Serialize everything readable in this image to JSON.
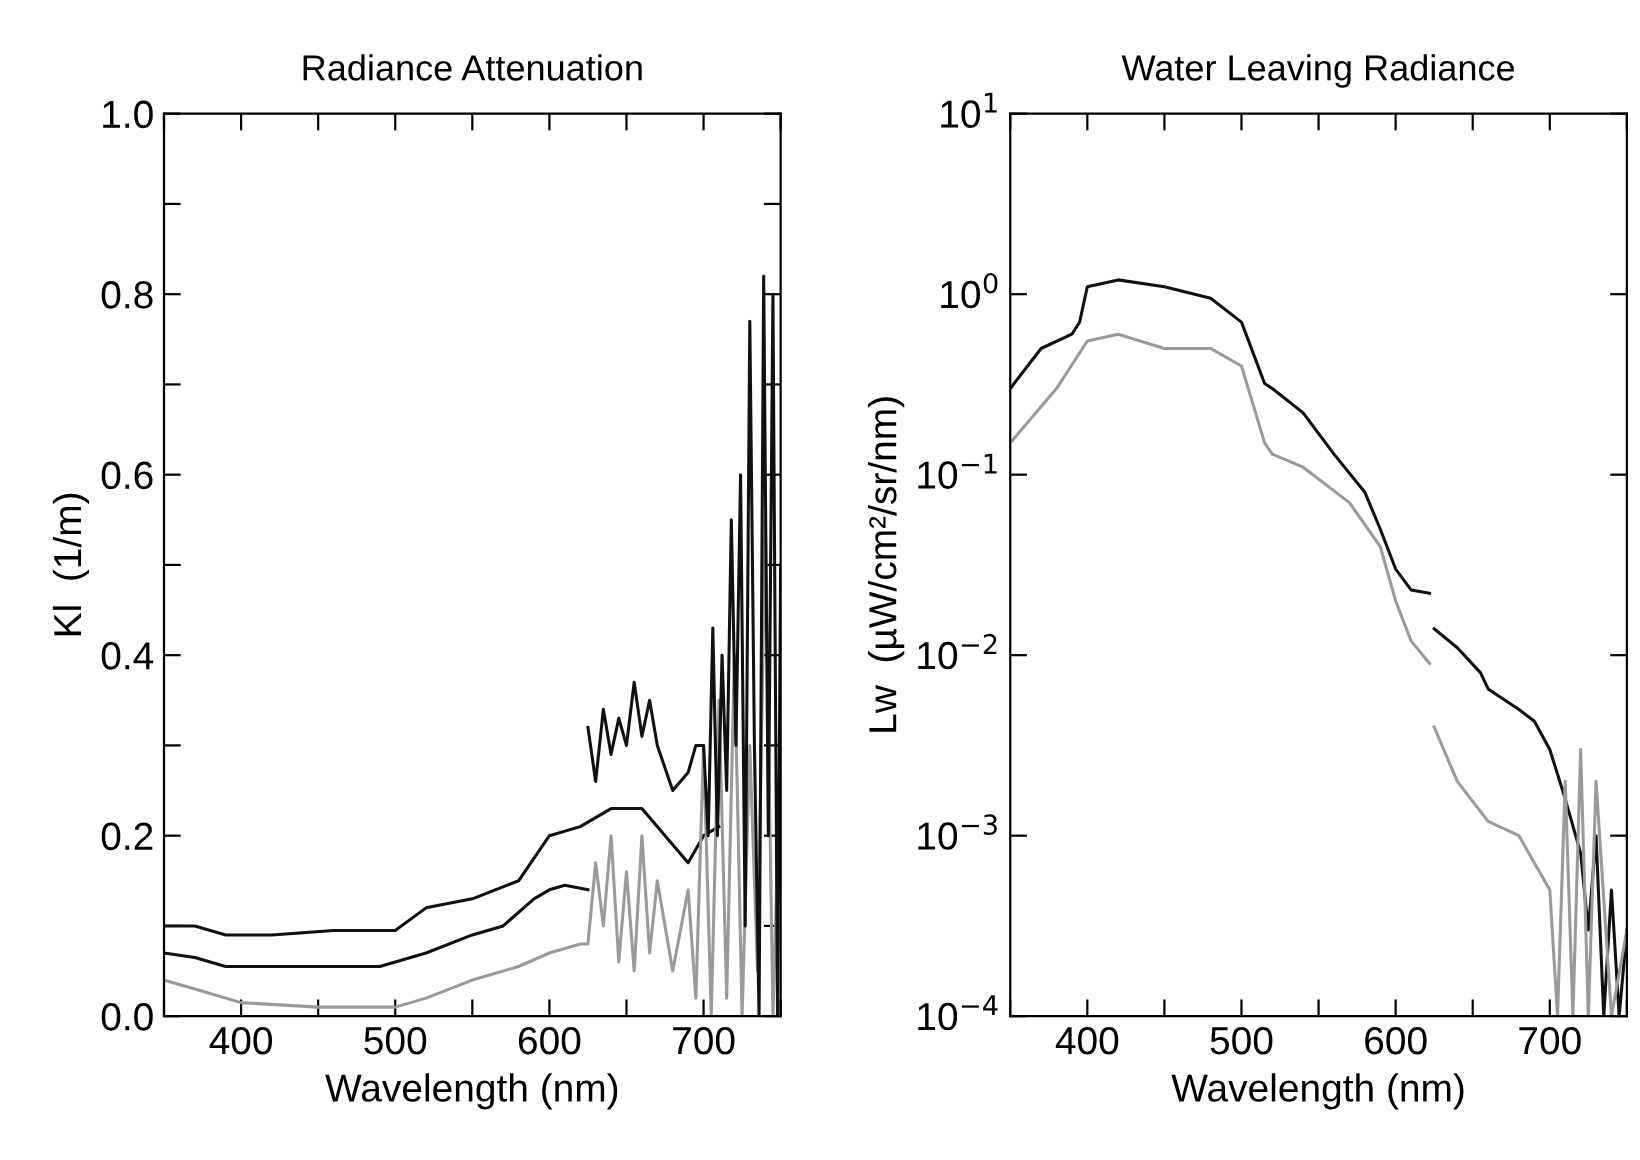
{
  "chart_data": [
    {
      "type": "line",
      "title": "Radiance Attenuation",
      "xlabel": "Wavelength (nm)",
      "ylabel": "Kl  (1/m)",
      "xlim": [
        350,
        750
      ],
      "xticks": [
        {
          "value": 350,
          "label": null
        },
        400,
        {
          "value": 450,
          "label": null
        },
        500,
        {
          "value": 550,
          "label": null
        },
        600,
        {
          "value": 650,
          "label": null
        },
        700,
        {
          "value": 750,
          "label": null
        }
      ],
      "ylim": [
        0,
        1
      ],
      "yticks": [
        {
          "value": 0,
          "label": "0.0"
        },
        {
          "value": 0.1,
          "label": null
        },
        0.2,
        {
          "value": 0.3,
          "label": null
        },
        0.4,
        {
          "value": 0.5,
          "label": null
        },
        0.6,
        {
          "value": 0.7,
          "label": null
        },
        0.8,
        {
          "value": 0.9,
          "label": null
        },
        {
          "value": 1,
          "label": "1.0"
        }
      ],
      "grid": false,
      "series": [
        {
          "color": "#111111",
          "x": [
            350,
            370,
            390,
            420,
            460,
            500,
            520,
            550,
            580,
            600,
            620,
            640,
            660,
            680,
            690,
            700,
            710
          ],
          "values": [
            0.1,
            0.1,
            0.09,
            0.09,
            0.095,
            0.095,
            0.12,
            0.13,
            0.15,
            0.2,
            0.21,
            0.23,
            0.23,
            0.19,
            0.17,
            0.2,
            0.21
          ]
        },
        {
          "color": "#111111",
          "x": [
            350,
            370,
            390,
            420,
            460,
            490,
            520,
            550,
            570,
            590,
            600,
            610,
            625
          ],
          "values": [
            0.07,
            0.065,
            0.055,
            0.055,
            0.055,
            0.055,
            0.07,
            0.09,
            0.1,
            0.13,
            0.14,
            0.145,
            0.14
          ]
        },
        {
          "color": "#9a9a9a",
          "x": [
            350,
            370,
            400,
            450,
            500,
            520,
            550,
            580,
            600,
            620,
            625,
            630,
            635,
            640,
            645,
            650,
            655,
            660,
            665,
            670,
            680,
            690,
            695,
            700,
            705,
            710,
            715,
            720,
            725,
            730,
            735,
            740,
            745,
            750
          ],
          "values": [
            0.04,
            0.03,
            0.015,
            0.01,
            0.01,
            0.02,
            0.04,
            0.055,
            0.07,
            0.08,
            0.08,
            0.17,
            0.1,
            0.2,
            0.06,
            0.16,
            0.05,
            0.2,
            0.07,
            0.15,
            0.05,
            0.14,
            0.02,
            0.3,
            0.0,
            0.35,
            0.02,
            0.4,
            0.0,
            0.3,
            0.05,
            0.55,
            0.0,
            0.3
          ]
        },
        {
          "color": "#111111",
          "x": [
            625,
            630,
            635,
            640,
            645,
            650,
            655,
            660,
            665,
            670,
            680,
            690,
            695,
            700,
            703,
            706,
            709,
            712,
            715,
            718,
            721,
            724,
            727,
            730,
            733,
            736,
            739,
            742,
            745,
            748,
            750
          ],
          "values": [
            0.32,
            0.26,
            0.34,
            0.29,
            0.33,
            0.3,
            0.37,
            0.31,
            0.35,
            0.3,
            0.25,
            0.27,
            0.3,
            0.3,
            0.2,
            0.43,
            0.2,
            0.4,
            0.25,
            0.55,
            0.3,
            0.6,
            0.1,
            0.77,
            0.3,
            0.0,
            0.82,
            0.2,
            0.8,
            0.0,
            0.5
          ]
        }
      ]
    },
    {
      "type": "line",
      "title": "Water Leaving Radiance",
      "xlabel": "Wavelength (nm)",
      "ylabel": "Lw  (µW/cm²/sr/nm)",
      "log": "y",
      "xlim": [
        350,
        750
      ],
      "xticks": [
        {
          "value": 350,
          "label": null
        },
        400,
        {
          "value": 450,
          "label": null
        },
        500,
        {
          "value": 550,
          "label": null
        },
        600,
        {
          "value": 650,
          "label": null
        },
        700,
        {
          "value": 750,
          "label": null
        }
      ],
      "ylim": [
        0.0001,
        10
      ],
      "yticks": [
        {
          "value": 0.0001,
          "label": "10$^{−4}$"
        },
        {
          "value": 0.001,
          "label": "10$^{−3}$"
        },
        {
          "value": 0.01,
          "label": "10$^{−2}$"
        },
        {
          "value": 0.1,
          "label": "10$^{−1}$"
        },
        {
          "value": 1,
          "label": "10$^{0}$"
        },
        {
          "value": 10,
          "label": "10$^{1}$"
        }
      ],
      "grid": false,
      "series": [
        {
          "color": "#111111",
          "x": [
            350,
            370,
            390,
            395,
            400,
            420,
            450,
            480,
            500,
            515,
            520,
            540,
            560,
            580,
            590,
            600,
            610,
            622,
            623,
            625,
            640,
            655,
            660,
            680,
            690,
            700,
            710,
            720,
            725,
            730,
            735,
            740,
            745,
            750
          ],
          "values": [
            0.3,
            0.5,
            0.6,
            0.7,
            1.1,
            1.2,
            1.1,
            0.95,
            0.7,
            0.32,
            0.3,
            0.22,
            0.13,
            0.08,
            0.05,
            0.03,
            0.023,
            0.022,
            null,
            0.014,
            0.011,
            0.008,
            0.0065,
            0.005,
            0.0043,
            0.003,
            0.0016,
            0.0008,
            0.0003,
            0.001,
            0.0001,
            0.0005,
            0.0001,
            0.0003
          ]
        },
        {
          "color": "#9a9a9a",
          "x": [
            350,
            380,
            400,
            420,
            450,
            480,
            500,
            515,
            520,
            540,
            570,
            590,
            600,
            610,
            622,
            623,
            625,
            640,
            660,
            680,
            700,
            705,
            710,
            715,
            720,
            725,
            730,
            740,
            750
          ],
          "values": [
            0.15,
            0.3,
            0.55,
            0.6,
            0.5,
            0.5,
            0.4,
            0.15,
            0.13,
            0.11,
            0.07,
            0.04,
            0.02,
            0.012,
            0.009,
            null,
            0.004,
            0.002,
            0.0012,
            0.001,
            0.0005,
            0.0001,
            0.002,
            0.0001,
            0.003,
            0.0001,
            0.002,
            0.0001,
            0.0003
          ]
        }
      ]
    }
  ]
}
